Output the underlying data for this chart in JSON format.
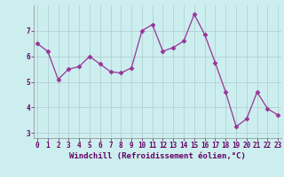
{
  "x": [
    0,
    1,
    2,
    3,
    4,
    5,
    6,
    7,
    8,
    9,
    10,
    11,
    12,
    13,
    14,
    15,
    16,
    17,
    18,
    19,
    20,
    21,
    22,
    23
  ],
  "y": [
    6.5,
    6.2,
    5.1,
    5.5,
    5.6,
    6.0,
    5.7,
    5.4,
    5.35,
    5.55,
    7.0,
    7.25,
    6.2,
    6.35,
    6.6,
    7.65,
    6.85,
    5.75,
    4.6,
    3.25,
    3.55,
    4.6,
    3.95,
    3.7
  ],
  "line_color": "#993399",
  "marker": "D",
  "markersize": 2.5,
  "linewidth": 0.9,
  "bg_color": "#cceeee",
  "grid_color": "#aacccc",
  "xlabel": "Windchill (Refroidissement éolien,°C)",
  "xlabel_fontsize": 6.5,
  "xlabel_color": "#660066",
  "yticks": [
    3,
    4,
    5,
    6,
    7
  ],
  "xticks": [
    0,
    1,
    2,
    3,
    4,
    5,
    6,
    7,
    8,
    9,
    10,
    11,
    12,
    13,
    14,
    15,
    16,
    17,
    18,
    19,
    20,
    21,
    22,
    23
  ],
  "xlim": [
    -0.3,
    23.3
  ],
  "ylim": [
    2.8,
    8.0
  ],
  "tick_fontsize": 5.5,
  "tick_color": "#660066",
  "figsize": [
    3.2,
    2.0
  ],
  "dpi": 100
}
